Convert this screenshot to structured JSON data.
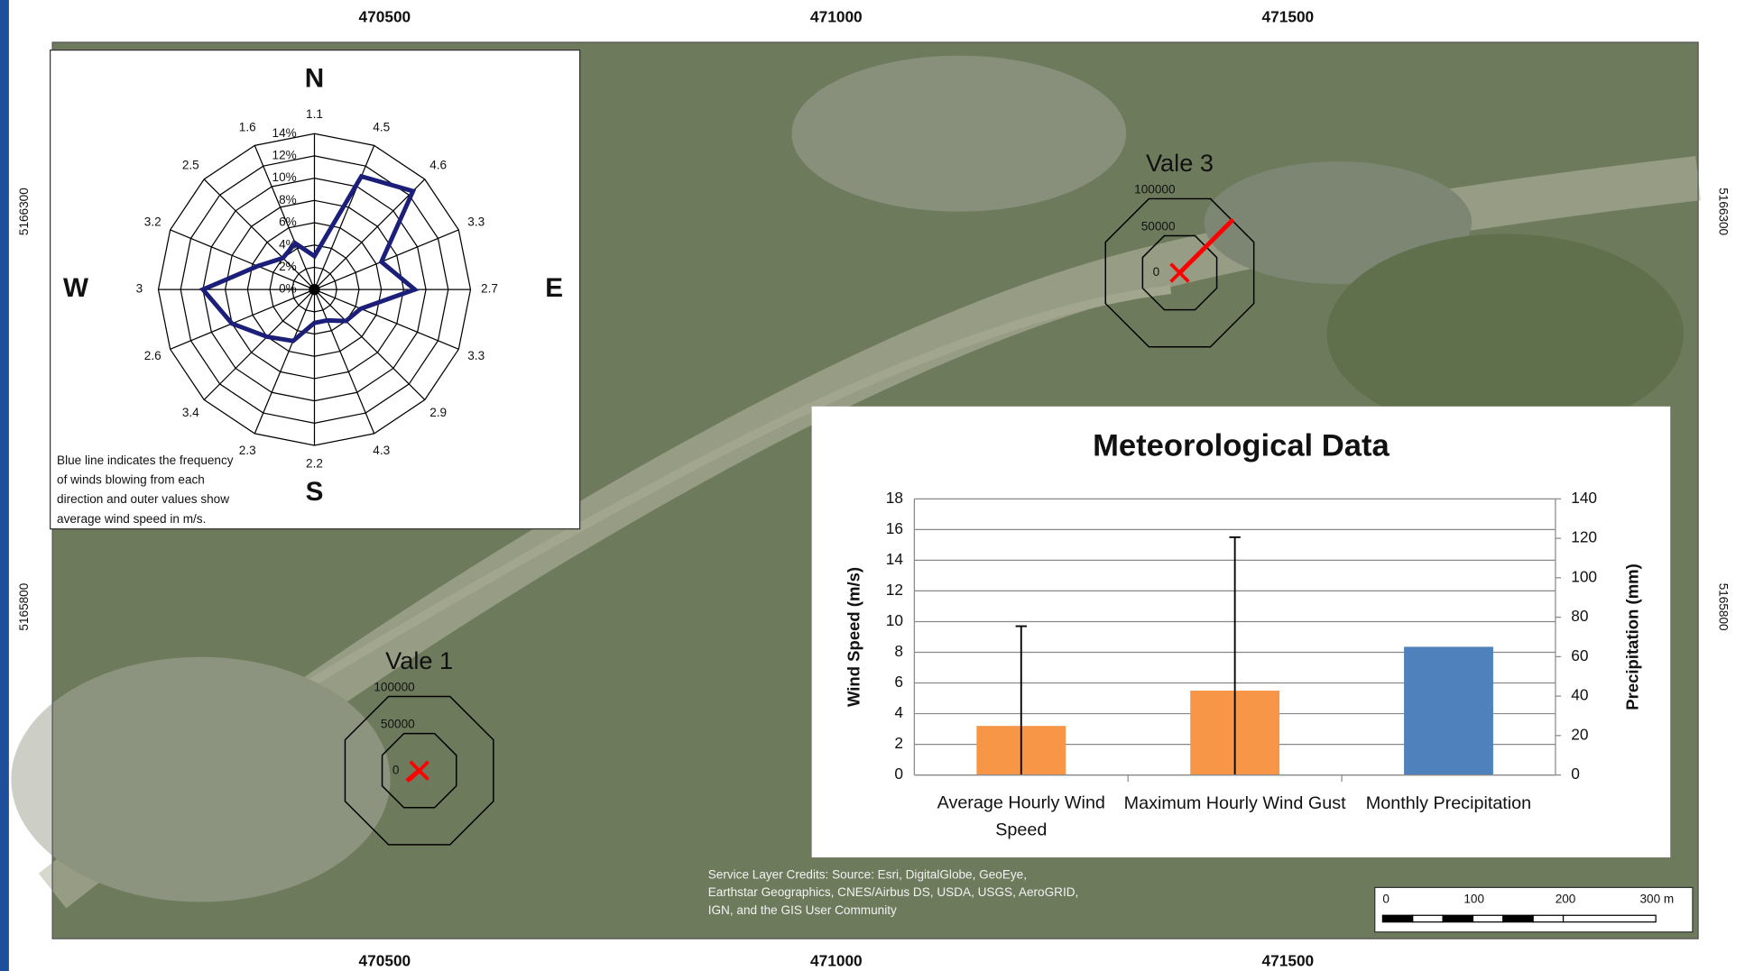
{
  "map": {
    "x_labels": [
      470500,
      471000,
      471500
    ],
    "y_labels": [
      5166300,
      5165800
    ],
    "attribution": [
      "Service Layer Credits: Source: Esri, DigitalGlobe, GeoEye,",
      "Earthstar Geographics, CNES/Airbus DS, USDA, USGS, AeroGRID,",
      "IGN, and the GIS User Community"
    ],
    "scale_bar": [
      0,
      100,
      200,
      "300 m"
    ]
  },
  "chart_data": [
    {
      "type": "radar",
      "cardinals": [
        "N",
        "E",
        "S",
        "W"
      ],
      "values": [
        3,
        11,
        12.5,
        6.5,
        9,
        4.5,
        4,
        3,
        3,
        5,
        6,
        8,
        10,
        5.5,
        4,
        4.5
      ],
      "speeds": [
        1.1,
        4.5,
        4.6,
        3.3,
        2.7,
        3.3,
        2.9,
        4.3,
        2.2,
        2.3,
        3.4,
        2.6,
        3,
        3.2,
        2.5,
        1.6
      ],
      "rlim": [
        0,
        14
      ],
      "rticks": [
        {
          "value": 0,
          "label": "0%"
        },
        {
          "value": 2,
          "label": "2%"
        },
        {
          "value": 4,
          "label": "4%"
        },
        {
          "value": 6,
          "label": "6%"
        },
        {
          "value": 8,
          "label": "8%"
        },
        {
          "value": 10,
          "label": "10%"
        },
        {
          "value": 12,
          "label": "12%"
        },
        {
          "value": 14,
          "label": "14%"
        }
      ],
      "color": "#1c1f7a",
      "note": [
        "Blue line indicates the frequency",
        "of winds blowing from each",
        "direction and outer values show",
        "average wind speed in m/s."
      ]
    },
    {
      "type": "bar",
      "title": "Meteorological Data",
      "categories": [
        "Average Hourly Wind Speed",
        "Maximum Hourly Wind Gust",
        "Monthly Precipitation"
      ],
      "series": [
        {
          "color": "#f79646",
          "values": [
            3.2,
            5.5,
            null
          ],
          "whisker_high": [
            9.7,
            15.5,
            null
          ]
        },
        {
          "color": "#4f81bd",
          "axis": "y2",
          "values": [
            null,
            null,
            65
          ]
        }
      ],
      "ylabel": "Wind Speed (m/s)",
      "y2label": "Precipitation (mm)",
      "ylim": [
        0,
        18
      ],
      "yticks": [
        0,
        2,
        4,
        6,
        8,
        10,
        12,
        14,
        16,
        18
      ],
      "y2lim": [
        0,
        140
      ],
      "y2ticks": [
        0,
        20,
        40,
        60,
        80,
        100,
        120,
        140
      ],
      "grid": true
    },
    {
      "type": "station",
      "title": "Vale 1",
      "rlim": [
        0,
        100000
      ],
      "rticks": [
        0,
        50000,
        100000
      ],
      "values": [
        20000
      ],
      "direction_deg": 230,
      "color": "#ff0000"
    },
    {
      "type": "station",
      "title": "Vale 3",
      "rlim": [
        0,
        100000
      ],
      "rticks": [
        0,
        50000,
        100000
      ],
      "values": [
        94000
      ],
      "direction_deg": 45,
      "color": "#ff0000"
    }
  ]
}
